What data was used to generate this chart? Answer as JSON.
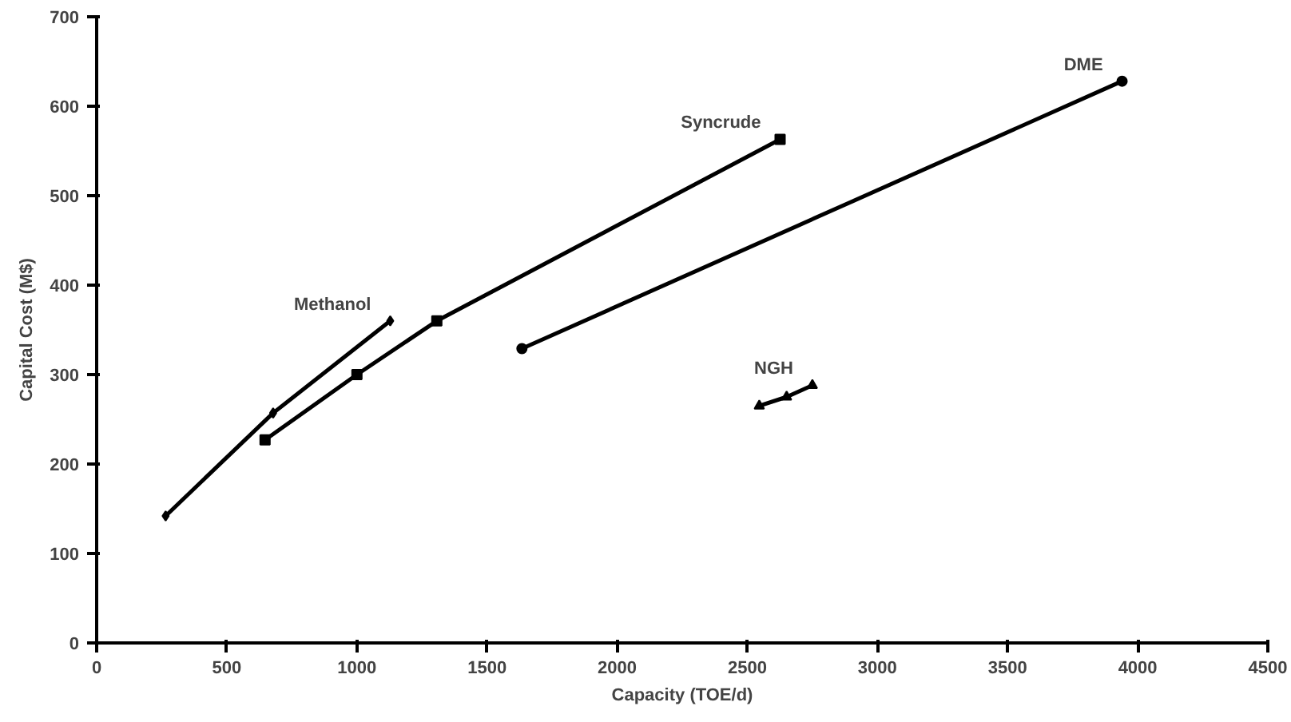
{
  "chart_data": {
    "type": "line",
    "xlabel": "Capacity (TOE/d)",
    "ylabel": "Capital Cost (M$)",
    "xlim": [
      0,
      4500
    ],
    "ylim": [
      0,
      700
    ],
    "xticks": [
      0,
      500,
      1000,
      1500,
      2000,
      2500,
      3000,
      3500,
      4000,
      4500
    ],
    "yticks": [
      0,
      100,
      200,
      300,
      400,
      500,
      600,
      700
    ],
    "grid": false,
    "line_style": "solid",
    "series": [
      {
        "name": "Methanol",
        "color": "#000000",
        "marker": "diamond",
        "x": [
          265,
          678,
          1128
        ],
        "values": [
          142,
          257,
          360
        ]
      },
      {
        "name": "Syncrude",
        "color": "#000000",
        "marker": "square",
        "x": [
          647,
          1000,
          1307,
          2626
        ],
        "values": [
          227,
          300,
          360,
          563
        ]
      },
      {
        "name": "DME",
        "color": "#000000",
        "marker": "circle",
        "x": [
          1634,
          3940
        ],
        "values": [
          329,
          628
        ]
      },
      {
        "name": "NGH",
        "color": "#000000",
        "marker": "triangle",
        "x": [
          2546,
          2651,
          2750
        ],
        "values": [
          265,
          275,
          288
        ]
      }
    ]
  }
}
